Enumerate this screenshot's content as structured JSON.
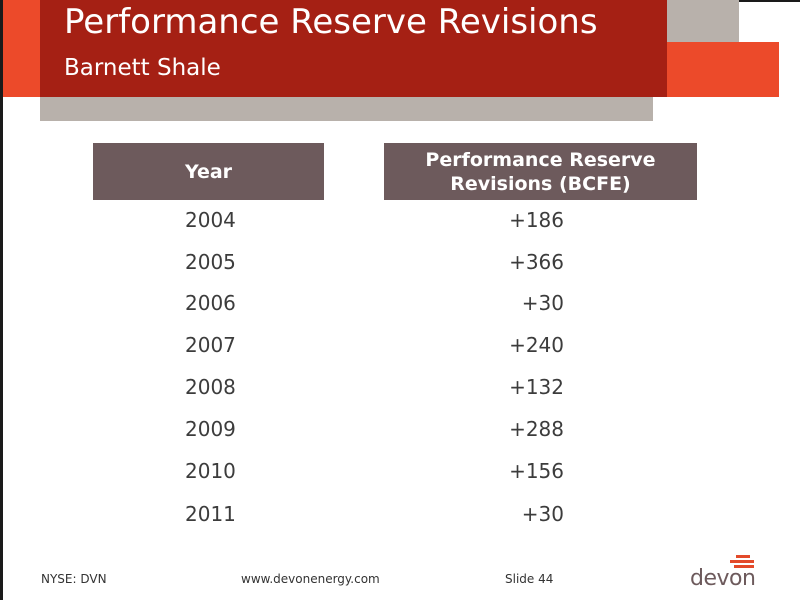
{
  "header": {
    "title": "Performance Reserve Revisions",
    "subtitle": "Barnett Shale"
  },
  "table": {
    "headers": {
      "year": "Year",
      "revisions_line1": "Performance Reserve",
      "revisions_line2": "Revisions (BCFE)"
    },
    "rows": [
      {
        "year": "2004",
        "value": "+186"
      },
      {
        "year": "2005",
        "value": "+366"
      },
      {
        "year": "2006",
        "value": "+30"
      },
      {
        "year": "2007",
        "value": "+240"
      },
      {
        "year": "2008",
        "value": "+132"
      },
      {
        "year": "2009",
        "value": "+288"
      },
      {
        "year": "2010",
        "value": "+156"
      },
      {
        "year": "2011",
        "value": "+30"
      }
    ]
  },
  "footer": {
    "ticker": "NYSE: DVN",
    "url": "www.devonenergy.com",
    "slide": "Slide 44",
    "logo_text": "devon"
  },
  "colors": {
    "header_red": "#a52014",
    "accent_orange": "#ec4a2a",
    "header_gray": "#b8b1ab",
    "table_header": "#6d5a5c"
  }
}
